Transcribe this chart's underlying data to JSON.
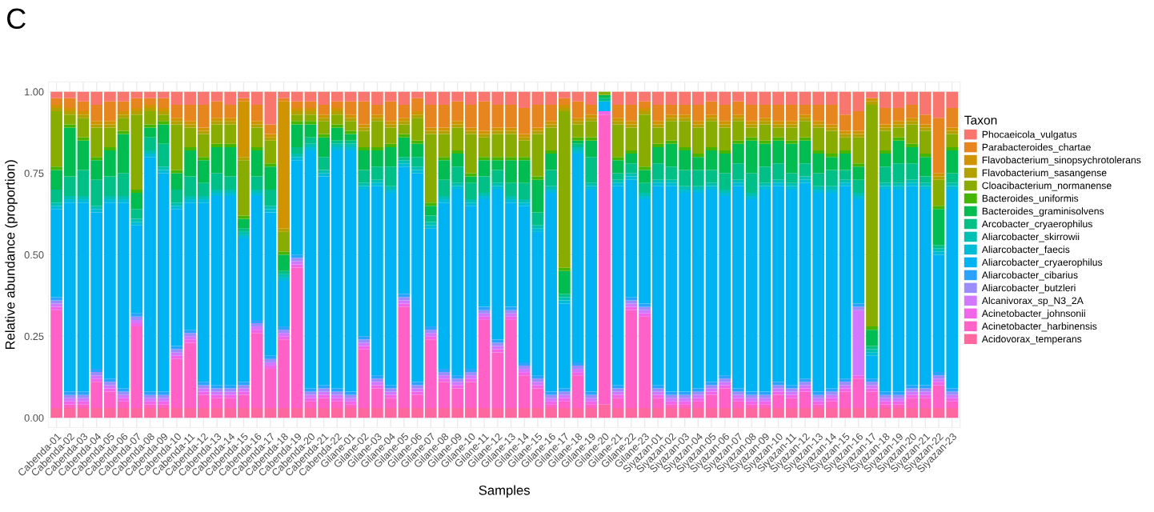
{
  "chart_data": {
    "type": "bar",
    "stacked": true,
    "title": "C",
    "xlabel": "Samples",
    "ylabel": "Relative abundance (proportion)",
    "legend_title": "Taxon",
    "legend": "right",
    "grid": true,
    "ylim": [
      -0.03,
      1.03
    ],
    "yticks": [
      {
        "value": 0,
        "label": "0.00"
      },
      {
        "value": 0.25,
        "label": "0.25"
      },
      {
        "value": 0.5,
        "label": "0.50"
      },
      {
        "value": 0.75,
        "label": "0.75"
      },
      {
        "value": 1,
        "label": "1.00"
      }
    ],
    "categories": [
      "Cabenda-01",
      "Cabenda-02",
      "Cabenda-03",
      "Cabenda-04",
      "Cabenda-05",
      "Cabenda-06",
      "Cabenda-07",
      "Cabenda-08",
      "Cabenda-09",
      "Cabenda-10",
      "Cabenda-11",
      "Cabenda-12",
      "Cabenda-13",
      "Cabenda-14",
      "Cabenda-15",
      "Cabenda-16",
      "Cabenda-17",
      "Cabenda-18",
      "Cabenda-19",
      "Cabenda-20",
      "Cabenda-21",
      "Cabenda-22",
      "Gilane-01",
      "Gilane-02",
      "Gilane-03",
      "Gilane-04",
      "Gilane-05",
      "Gilane-06",
      "Gilane-07",
      "Gilane-08",
      "Gilane-09",
      "Gilane-10",
      "Gilane-11",
      "Gilane-12",
      "Gilane-13",
      "Gilane-14",
      "Gilane-15",
      "Gilane-16",
      "Gilane-17",
      "Gilane-18",
      "Gilane-19",
      "Gilane-20",
      "Gilane-21",
      "Gilane-22",
      "Gilane-23",
      "Siyazan-01",
      "Siyazan-02",
      "Siyazan-03",
      "Siyazan-04",
      "Siyazan-05",
      "Siyazan-06",
      "Siyazan-07",
      "Siyazan-08",
      "Siyazan-09",
      "Siyazan-10",
      "Siyazan-11",
      "Siyazan-12",
      "Siyazan-13",
      "Siyazan-14",
      "Siyazan-15",
      "Siyazan-16",
      "Siyazan-17",
      "Siyazan-18",
      "Siyazan-19",
      "Siyazan-20",
      "Siyazan-21",
      "Siyazan-22",
      "Siyazan-23"
    ],
    "series": [
      {
        "name": "Acidovorax_temperans",
        "color": "#ff689e",
        "values": [
          0.03,
          0.03,
          0.03,
          0.03,
          0.03,
          0.03,
          0.03,
          0.03,
          0.03,
          0.03,
          0.03,
          0.03,
          0.03,
          0.03,
          0.03,
          0.03,
          0.03,
          0.03,
          0.03,
          0.03,
          0.03,
          0.03,
          0.03,
          0.03,
          0.03,
          0.03,
          0.03,
          0.03,
          0.03,
          0.03,
          0.03,
          0.03,
          0.03,
          0.03,
          0.03,
          0.03,
          0.03,
          0.03,
          0.03,
          0.03,
          0.03,
          0.04,
          0.03,
          0.03,
          0.03,
          0.03,
          0.03,
          0.03,
          0.03,
          0.03,
          0.03,
          0.03,
          0.03,
          0.03,
          0.03,
          0.03,
          0.03,
          0.03,
          0.03,
          0.03,
          0.03,
          0.03,
          0.03,
          0.03,
          0.03,
          0.03,
          0.03,
          0.03
        ]
      },
      {
        "name": "Acinetobacter_harbinensis",
        "color": "#ff61c7",
        "values": [
          0.3,
          0.01,
          0.01,
          0.08,
          0.05,
          0.02,
          0.25,
          0.01,
          0.01,
          0.15,
          0.2,
          0.04,
          0.03,
          0.03,
          0.04,
          0.23,
          0.12,
          0.21,
          0.43,
          0.02,
          0.03,
          0.02,
          0.01,
          0.18,
          0.06,
          0.03,
          0.31,
          0.04,
          0.21,
          0.08,
          0.06,
          0.08,
          0.27,
          0.17,
          0.27,
          0.1,
          0.06,
          0.01,
          0.02,
          0.1,
          0.01,
          0.89,
          0.03,
          0.3,
          0.28,
          0.03,
          0.01,
          0.01,
          0.02,
          0.04,
          0.06,
          0.02,
          0.01,
          0.01,
          0.04,
          0.03,
          0.05,
          0.01,
          0.02,
          0.05,
          0.09,
          0.05,
          0.01,
          0.01,
          0.03,
          0.03,
          0.07,
          0.02
        ]
      },
      {
        "name": "Acinetobacter_johnsonii",
        "color": "#f166e8",
        "values": [
          0.01,
          0.01,
          0.01,
          0.01,
          0.01,
          0.01,
          0.01,
          0.01,
          0.01,
          0.01,
          0.01,
          0.01,
          0.01,
          0.01,
          0.01,
          0.01,
          0.01,
          0.01,
          0.01,
          0.01,
          0.01,
          0.01,
          0.01,
          0.01,
          0.01,
          0.01,
          0.01,
          0.01,
          0.01,
          0.01,
          0.01,
          0.01,
          0.01,
          0.01,
          0.01,
          0.01,
          0.01,
          0.01,
          0.01,
          0.01,
          0.01,
          0.01,
          0.01,
          0.01,
          0.01,
          0.01,
          0.01,
          0.01,
          0.01,
          0.01,
          0.01,
          0.01,
          0.01,
          0.01,
          0.01,
          0.01,
          0.01,
          0.01,
          0.01,
          0.01,
          0.01,
          0.01,
          0.01,
          0.01,
          0.01,
          0.01,
          0.01,
          0.01
        ]
      },
      {
        "name": "Alcanivorax_sp_N3_2A",
        "color": "#d277ff",
        "values": [
          0.01,
          0.01,
          0.01,
          0.01,
          0.01,
          0.01,
          0.01,
          0.01,
          0.01,
          0.01,
          0.01,
          0.01,
          0.01,
          0.01,
          0.01,
          0.01,
          0.01,
          0.01,
          0.01,
          0.01,
          0.01,
          0.01,
          0.01,
          0.01,
          0.01,
          0.01,
          0.01,
          0.01,
          0.01,
          0.01,
          0.01,
          0.01,
          0.01,
          0.01,
          0.01,
          0.01,
          0.01,
          0.01,
          0.01,
          0.01,
          0.01,
          0,
          0.01,
          0.01,
          0.01,
          0.01,
          0.01,
          0.01,
          0.01,
          0.01,
          0.01,
          0.01,
          0.01,
          0.01,
          0.01,
          0.01,
          0.01,
          0.01,
          0.01,
          0.01,
          0.2,
          0.01,
          0.01,
          0.01,
          0.01,
          0.01,
          0.01,
          0.01
        ]
      },
      {
        "name": "Aliarcobacter_butzleri",
        "color": "#9c8dff",
        "values": [
          0.01,
          0.01,
          0.01,
          0.01,
          0.01,
          0.01,
          0.01,
          0.01,
          0.01,
          0.01,
          0.01,
          0.01,
          0.01,
          0.01,
          0.01,
          0.01,
          0.01,
          0.01,
          0.01,
          0.01,
          0.01,
          0.01,
          0.01,
          0.01,
          0.01,
          0.01,
          0.01,
          0.01,
          0.01,
          0.01,
          0.01,
          0.01,
          0.01,
          0.01,
          0.01,
          0.01,
          0.01,
          0.01,
          0.01,
          0.01,
          0.01,
          0,
          0.01,
          0.01,
          0.01,
          0.01,
          0.01,
          0.01,
          0.01,
          0.01,
          0.01,
          0.01,
          0.01,
          0.01,
          0.01,
          0.01,
          0.01,
          0.01,
          0.01,
          0.01,
          0.01,
          0.01,
          0.01,
          0.01,
          0.01,
          0.01,
          0.01,
          0.01
        ]
      },
      {
        "name": "Aliarcobacter_cibarius",
        "color": "#29a3ff",
        "values": [
          0.01,
          0.01,
          0.01,
          0.01,
          0.01,
          0.01,
          0.01,
          0.01,
          0.01,
          0.01,
          0.01,
          0.01,
          0.01,
          0.01,
          0.01,
          0.01,
          0.01,
          0.01,
          0.01,
          0.01,
          0.01,
          0.01,
          0.01,
          0.01,
          0.01,
          0.01,
          0.01,
          0.01,
          0.01,
          0.01,
          0.01,
          0.01,
          0.01,
          0.01,
          0.01,
          0.01,
          0.01,
          0.01,
          0.01,
          0.01,
          0.01,
          0,
          0.01,
          0.01,
          0.01,
          0.01,
          0.01,
          0.01,
          0.01,
          0.01,
          0.01,
          0.01,
          0.01,
          0.01,
          0.01,
          0.01,
          0.01,
          0.01,
          0.01,
          0.01,
          0.01,
          0.01,
          0.01,
          0.01,
          0.01,
          0.01,
          0.01,
          0.01
        ]
      },
      {
        "name": "Aliarcobacter_cryaerophilus",
        "color": "#00b3f2",
        "values": [
          0.27,
          0.58,
          0.58,
          0.48,
          0.54,
          0.57,
          0.27,
          0.72,
          0.67,
          0.42,
          0.39,
          0.55,
          0.58,
          0.58,
          0.44,
          0.38,
          0.44,
          0.14,
          0.29,
          0.73,
          0.64,
          0.73,
          0.74,
          0.45,
          0.58,
          0.59,
          0.39,
          0.64,
          0.3,
          0.51,
          0.57,
          0.5,
          0.33,
          0.46,
          0.32,
          0.48,
          0.44,
          0.61,
          0.26,
          0.64,
          0.62,
          0.03,
          0.61,
          0.36,
          0.32,
          0.61,
          0.63,
          0.61,
          0.6,
          0.59,
          0.55,
          0.62,
          0.59,
          0.62,
          0.6,
          0.6,
          0.6,
          0.61,
          0.6,
          0.59,
          0.32,
          0.07,
          0.62,
          0.62,
          0.61,
          0.6,
          0.36,
          0.61
        ]
      },
      {
        "name": "Aliarcobacter_faecis",
        "color": "#00bcd6",
        "values": [
          0.01,
          0.01,
          0.01,
          0.01,
          0.01,
          0.01,
          0.01,
          0.01,
          0.01,
          0.01,
          0.01,
          0.01,
          0.01,
          0.01,
          0.01,
          0.01,
          0.01,
          0.01,
          0.01,
          0.01,
          0.01,
          0.01,
          0.01,
          0.01,
          0.01,
          0.01,
          0.01,
          0.01,
          0.01,
          0.01,
          0.01,
          0.01,
          0.01,
          0.01,
          0.01,
          0.01,
          0.01,
          0.01,
          0.01,
          0.01,
          0.01,
          0,
          0.01,
          0.01,
          0.01,
          0.01,
          0.01,
          0.01,
          0.01,
          0.01,
          0.01,
          0.01,
          0.01,
          0.01,
          0.01,
          0.01,
          0.01,
          0.01,
          0.01,
          0.01,
          0.01,
          0.01,
          0.01,
          0.01,
          0.01,
          0.01,
          0.01,
          0.01
        ]
      },
      {
        "name": "Aliarcobacter_skirrowii",
        "color": "#00c0b2",
        "values": [
          0.01,
          0.01,
          0.01,
          0.01,
          0.01,
          0.01,
          0.01,
          0.01,
          0.01,
          0.01,
          0.01,
          0.01,
          0.01,
          0.01,
          0.01,
          0.01,
          0.01,
          0.01,
          0.01,
          0.01,
          0.01,
          0.01,
          0.01,
          0.01,
          0.01,
          0.01,
          0.01,
          0.01,
          0.01,
          0.01,
          0.01,
          0.01,
          0.01,
          0.01,
          0.01,
          0.01,
          0.01,
          0.01,
          0.01,
          0.01,
          0.01,
          0,
          0.01,
          0.01,
          0.01,
          0.01,
          0.01,
          0.01,
          0.01,
          0.01,
          0.01,
          0.01,
          0.01,
          0.01,
          0.01,
          0.01,
          0.01,
          0.01,
          0.01,
          0.01,
          0.01,
          0.01,
          0.01,
          0.01,
          0.01,
          0.01,
          0.01,
          0.01
        ]
      },
      {
        "name": "Arcobacter_cryaerophilus",
        "color": "#00c087",
        "values": [
          0.04,
          0.06,
          0.08,
          0.08,
          0.06,
          0.07,
          0.03,
          0.04,
          0.07,
          0.04,
          0.06,
          0.04,
          0.05,
          0.04,
          0.01,
          0.04,
          0.05,
          0.01,
          0.02,
          0.02,
          0.04,
          0.01,
          0.01,
          0.04,
          0.04,
          0.06,
          0.01,
          0.03,
          0.02,
          0.05,
          0.05,
          0.05,
          0.05,
          0.04,
          0.04,
          0.05,
          0.04,
          0.05,
          0.01,
          0.01,
          0.08,
          0.01,
          0.02,
          0.03,
          0.03,
          0.05,
          0.04,
          0.05,
          0.05,
          0.04,
          0.05,
          0.05,
          0.06,
          0.05,
          0.05,
          0.03,
          0.04,
          0.04,
          0.05,
          0.03,
          0.04,
          0.01,
          0.05,
          0.06,
          0.05,
          0.02,
          0.01,
          0.03
        ]
      },
      {
        "name": "Bacteroides_graminisolvens",
        "color": "#00bc51",
        "values": [
          0.06,
          0.15,
          0.09,
          0.06,
          0.08,
          0.12,
          0.05,
          0.03,
          0.06,
          0.05,
          0.08,
          0.07,
          0.08,
          0.09,
          0.03,
          0.08,
          0.07,
          0.05,
          0.07,
          0.04,
          0.06,
          0.04,
          0.02,
          0.06,
          0.05,
          0.06,
          0.06,
          0.04,
          0.03,
          0.06,
          0.04,
          0.02,
          0.05,
          0.03,
          0.07,
          0.07,
          0.1,
          0.05,
          0.07,
          0.01,
          0.05,
          0.01,
          0.04,
          0.03,
          0.04,
          0.05,
          0.07,
          0.06,
          0.04,
          0.06,
          0.06,
          0.06,
          0.1,
          0.07,
          0.07,
          0.09,
          0.07,
          0.06,
          0.04,
          0.05,
          0.04,
          0.05,
          0.04,
          0.07,
          0.05,
          0.06,
          0.11,
          0.07
        ]
      },
      {
        "name": "Bacteroides_uniformis",
        "color": "#45b500",
        "values": [
          0.01,
          0.01,
          0.01,
          0.01,
          0.01,
          0.01,
          0.01,
          0.01,
          0.01,
          0.01,
          0.01,
          0.01,
          0.01,
          0.01,
          0.01,
          0.01,
          0.01,
          0.01,
          0.01,
          0.01,
          0.01,
          0.01,
          0.01,
          0.01,
          0.01,
          0.01,
          0.01,
          0.01,
          0.01,
          0.01,
          0.01,
          0.01,
          0.01,
          0.01,
          0.01,
          0.01,
          0.01,
          0.01,
          0.01,
          0.01,
          0.01,
          0,
          0.01,
          0.01,
          0.01,
          0.01,
          0.01,
          0.01,
          0.01,
          0.01,
          0.01,
          0.01,
          0.01,
          0.01,
          0.01,
          0.01,
          0.01,
          0.01,
          0.01,
          0.01,
          0.01,
          0.01,
          0.01,
          0.01,
          0.01,
          0.01,
          0.01,
          0.01
        ]
      },
      {
        "name": "Cloacibacterium_normanense",
        "color": "#89ac00",
        "values": [
          0.17,
          0.03,
          0.06,
          0.09,
          0.06,
          0.04,
          0.23,
          0.04,
          0.02,
          0.14,
          0.06,
          0.07,
          0.06,
          0.06,
          0.17,
          0.06,
          0.07,
          0.06,
          0.02,
          0.02,
          0.04,
          0.03,
          0.03,
          0.05,
          0.08,
          0.05,
          0.03,
          0.07,
          0.21,
          0.07,
          0.07,
          0.12,
          0.06,
          0.07,
          0.07,
          0.05,
          0.13,
          0.07,
          0.48,
          0.04,
          0.05,
          0.01,
          0.1,
          0.07,
          0.16,
          0.05,
          0.06,
          0.08,
          0.08,
          0.08,
          0.07,
          0.06,
          0.03,
          0.05,
          0.03,
          0.04,
          0.05,
          0.07,
          0.07,
          0.04,
          0.08,
          0.68,
          0.06,
          0.03,
          0.06,
          0.07,
          0.08,
          0.04
        ]
      },
      {
        "name": "Flavobacterium_sasangense",
        "color": "#b2a100",
        "values": [
          0.01,
          0.01,
          0.01,
          0.01,
          0.01,
          0.01,
          0.01,
          0.01,
          0.01,
          0.01,
          0.01,
          0.01,
          0.01,
          0.01,
          0.01,
          0.01,
          0.01,
          0.01,
          0.01,
          0.01,
          0.01,
          0.01,
          0.01,
          0.01,
          0.01,
          0.01,
          0.01,
          0.01,
          0.01,
          0.01,
          0.01,
          0.01,
          0.01,
          0.01,
          0.01,
          0.01,
          0.01,
          0.01,
          0.01,
          0.01,
          0.01,
          0,
          0.01,
          0.01,
          0.01,
          0.01,
          0.01,
          0.01,
          0.01,
          0.01,
          0.01,
          0.01,
          0.01,
          0.01,
          0.01,
          0.01,
          0.01,
          0.01,
          0.01,
          0.01,
          0.01,
          0.01,
          0.01,
          0.01,
          0.01,
          0.01,
          0.01,
          0.01
        ]
      },
      {
        "name": "Flavobacterium_sinopsychrotolerans",
        "color": "#d09400",
        "values": [
          0.01,
          0.01,
          0.01,
          0.01,
          0.01,
          0.01,
          0.01,
          0.01,
          0.01,
          0.01,
          0.01,
          0.01,
          0.01,
          0.01,
          0.17,
          0.01,
          0.01,
          0.39,
          0.01,
          0.01,
          0.01,
          0.01,
          0.01,
          0.01,
          0.01,
          0.01,
          0.01,
          0.01,
          0.01,
          0.01,
          0.01,
          0.01,
          0.01,
          0.01,
          0.01,
          0.01,
          0.01,
          0.01,
          0.01,
          0.01,
          0.01,
          0,
          0.01,
          0.01,
          0.01,
          0.01,
          0.01,
          0.01,
          0.01,
          0.01,
          0.01,
          0.01,
          0.01,
          0.01,
          0.01,
          0.01,
          0.01,
          0.01,
          0.01,
          0.01,
          0.01,
          0.01,
          0.01,
          0.01,
          0.01,
          0.01,
          0.01,
          0.01
        ]
      },
      {
        "name": "Parabacteroides_chartae",
        "color": "#e7851e",
        "values": [
          0.02,
          0.03,
          0.03,
          0.05,
          0.06,
          0.03,
          0.03,
          0.02,
          0.03,
          0.04,
          0.05,
          0.07,
          0.05,
          0.04,
          0.01,
          0.05,
          0.03,
          0.01,
          0.02,
          0.02,
          0.03,
          0.02,
          0.04,
          0.07,
          0.03,
          0.06,
          0.04,
          0.04,
          0.07,
          0.07,
          0.06,
          0.07,
          0.09,
          0.07,
          0.07,
          0.08,
          0.07,
          0.05,
          0.02,
          0.05,
          0.03,
          0,
          0.04,
          0.05,
          0.02,
          0.05,
          0.03,
          0.03,
          0.05,
          0.04,
          0.05,
          0.04,
          0.05,
          0.04,
          0.05,
          0.05,
          0.03,
          0.05,
          0.06,
          0.05,
          0.06,
          0.0,
          0.05,
          0.04,
          0.04,
          0.03,
          0.17,
          0.06
        ]
      },
      {
        "name": "Phocaeicola_vulgatus",
        "color": "#f8766d",
        "values": [
          0.02,
          0.02,
          0.03,
          0.04,
          0.03,
          0.03,
          0.02,
          0.02,
          0.02,
          0.04,
          0.04,
          0.04,
          0.03,
          0.04,
          0.02,
          0.04,
          0.1,
          0.02,
          0.03,
          0.03,
          0.04,
          0.03,
          0.03,
          0.03,
          0.04,
          0.03,
          0.04,
          0.02,
          0.04,
          0.04,
          0.03,
          0.04,
          0.03,
          0.04,
          0.04,
          0.05,
          0.04,
          0.04,
          0.02,
          0.03,
          0.04,
          0,
          0.04,
          0.04,
          0.03,
          0.04,
          0.04,
          0.04,
          0.04,
          0.03,
          0.04,
          0.03,
          0.04,
          0.04,
          0.04,
          0.04,
          0.04,
          0.04,
          0.04,
          0.07,
          0.06,
          0.02,
          0.05,
          0.05,
          0.04,
          0.07,
          0.08,
          0.05
        ]
      }
    ]
  }
}
